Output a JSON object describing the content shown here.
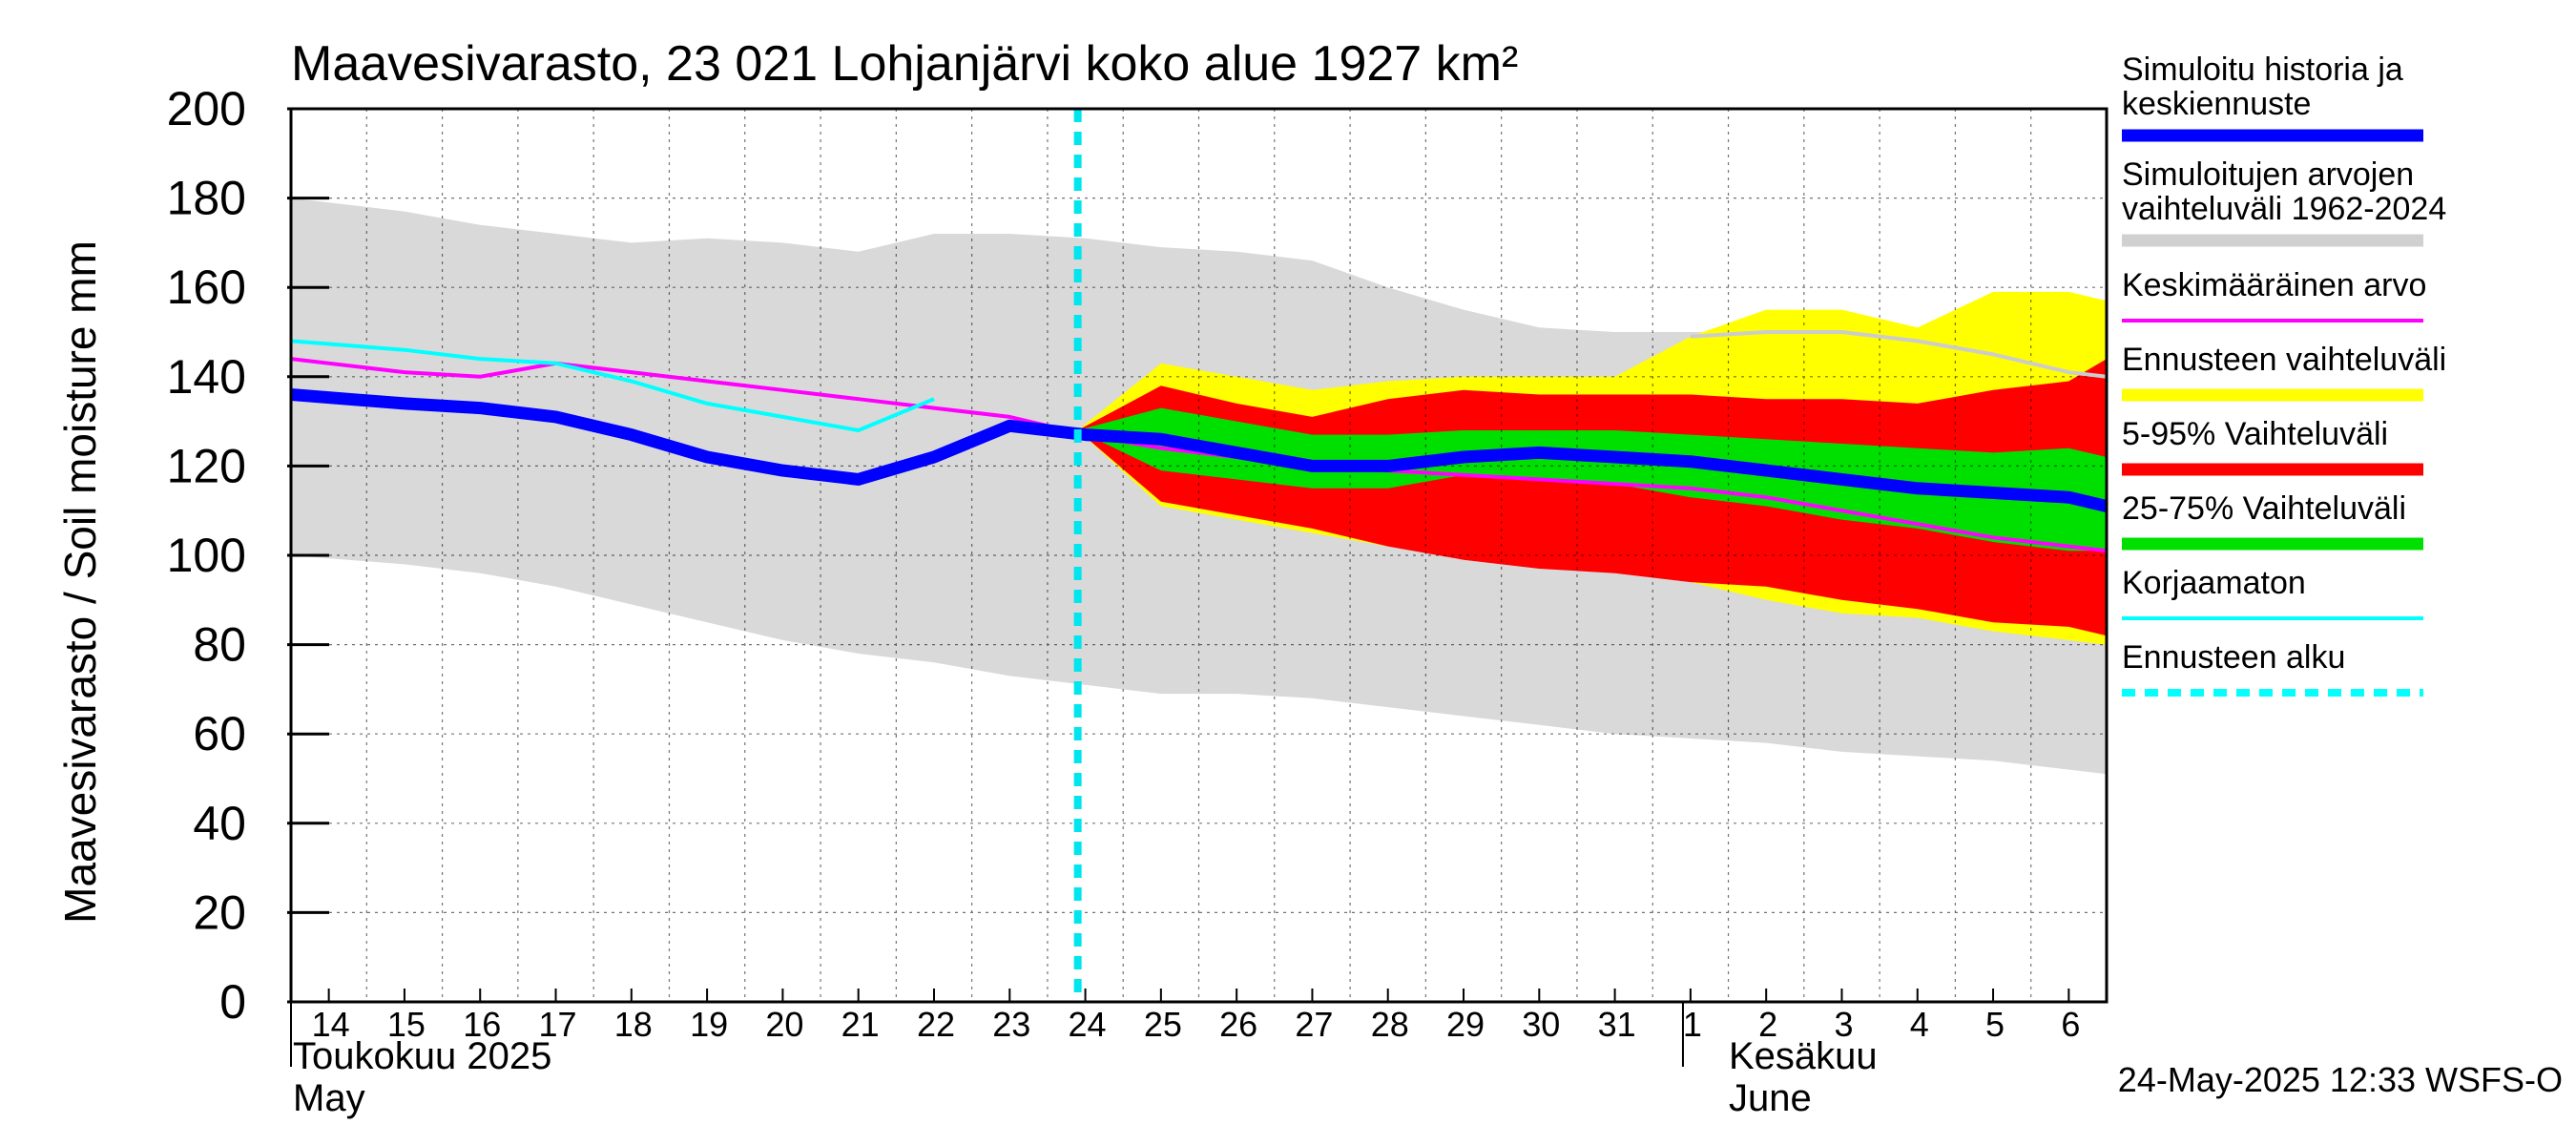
{
  "chart_data": {
    "type": "area",
    "title": "Maavesivarasto, 23 021 Lohjanjärvi koko alue 1927 km²",
    "ylabel": "Maavesivarasto / Soil moisture   mm",
    "ylim": [
      0,
      200
    ],
    "yticks": [
      0,
      20,
      40,
      60,
      80,
      100,
      120,
      140,
      160,
      180,
      200
    ],
    "x_day_range": [
      13.5,
      37.5
    ],
    "x_tick_labels": [
      "14",
      "15",
      "16",
      "17",
      "18",
      "19",
      "20",
      "21",
      "22",
      "23",
      "24",
      "25",
      "26",
      "27",
      "28",
      "29",
      "30",
      "31",
      "1",
      "2",
      "3",
      "4",
      "5",
      "6"
    ],
    "month_labels": {
      "may_fi": "Toukokuu  2025",
      "may_en": "May",
      "june_fi": "Kesäkuu",
      "june_en": "June"
    },
    "forecast_start_day": 23.9,
    "timestamp": "24-May-2025 12:33 WSFS-O",
    "series": [
      {
        "name": "Simuloitujen arvojen vaihteluväli 1962-2024",
        "role": "history_band",
        "color": "#d9d9d9",
        "x": [
          13.5,
          15,
          16,
          17,
          18,
          19,
          20,
          21,
          22,
          23,
          24,
          25,
          26,
          27,
          28,
          29,
          30,
          31,
          32,
          33,
          34,
          35,
          36,
          37,
          37.5
        ],
        "upper": [
          180,
          177,
          174,
          172,
          170,
          171,
          170,
          168,
          172,
          172,
          171,
          169,
          168,
          166,
          160,
          155,
          151,
          150,
          150,
          150,
          150,
          150,
          150,
          150,
          150
        ],
        "lower": [
          100,
          98,
          96,
          93,
          89,
          85,
          81,
          78,
          76,
          73,
          71,
          69,
          69,
          68,
          66,
          64,
          62,
          60,
          59,
          58,
          56,
          55,
          54,
          52,
          51
        ]
      },
      {
        "name": "Ennusteen vaihteluväli",
        "role": "forecast_band",
        "color": "#ffff00",
        "x": [
          23.9,
          25,
          26,
          27,
          28,
          29,
          30,
          31,
          32,
          33,
          34,
          35,
          36,
          37,
          37.5
        ],
        "upper": [
          128,
          143,
          140,
          137,
          139,
          140,
          140,
          140,
          149,
          155,
          155,
          151,
          159,
          159,
          157
        ],
        "lower": [
          128,
          111,
          108,
          105,
          102,
          100,
          98,
          99,
          94,
          90,
          87,
          86,
          83,
          81,
          80
        ]
      },
      {
        "name": "5-95% Vaihteluväli",
        "role": "band_5_95",
        "color": "#ff0000",
        "x": [
          23.9,
          25,
          26,
          27,
          28,
          29,
          30,
          31,
          32,
          33,
          34,
          35,
          36,
          37,
          37.5
        ],
        "upper": [
          128,
          138,
          134,
          131,
          135,
          137,
          136,
          136,
          136,
          135,
          135,
          134,
          137,
          139,
          144
        ],
        "lower": [
          128,
          112,
          109,
          106,
          102,
          99,
          97,
          96,
          94,
          93,
          90,
          88,
          85,
          84,
          82
        ]
      },
      {
        "name": "25-75% Vaihteluväli",
        "role": "band_25_75",
        "color": "#00e000",
        "x": [
          23.9,
          25,
          26,
          27,
          28,
          29,
          30,
          31,
          32,
          33,
          34,
          35,
          36,
          37,
          37.5
        ],
        "upper": [
          128,
          133,
          130,
          127,
          127,
          128,
          128,
          128,
          127,
          126,
          125,
          124,
          123,
          124,
          122
        ],
        "lower": [
          128,
          119,
          117,
          115,
          115,
          118,
          117,
          116,
          113,
          111,
          108,
          106,
          103,
          101,
          101
        ]
      },
      {
        "name": "Keskimääräinen arvo",
        "role": "mean",
        "color": "#ff00ff",
        "x": [
          13.5,
          15,
          16,
          17,
          18,
          19,
          20,
          21,
          22,
          23,
          24,
          25,
          26,
          27,
          28,
          29,
          30,
          31,
          32,
          33,
          34,
          35,
          36,
          37,
          37.5
        ],
        "values": [
          144,
          141,
          140,
          143,
          141,
          139,
          137,
          135,
          133,
          131,
          127,
          124,
          122,
          120,
          119,
          118,
          117,
          116,
          115,
          113,
          110,
          107,
          104,
          102,
          101
        ]
      },
      {
        "name": "Keskimääräinen arvo (ylempi jatke)",
        "role": "mean_upper_tail",
        "color": "#cccccc",
        "x": [
          32,
          33,
          34,
          35,
          36,
          37,
          37.5
        ],
        "values": [
          149,
          150,
          150,
          148,
          145,
          141,
          140
        ]
      },
      {
        "name": "Korjaamaton",
        "role": "uncorrected",
        "color": "#00ffff",
        "x": [
          13.5,
          15,
          16,
          17,
          18,
          19,
          20,
          21,
          22
        ],
        "values": [
          148,
          146,
          144,
          143,
          139,
          134,
          131,
          128,
          135
        ]
      },
      {
        "name": "Simuloitu historia ja keskiennuste",
        "role": "main",
        "color": "#0000ff",
        "x": [
          13.5,
          15,
          16,
          17,
          18,
          19,
          20,
          21,
          22,
          23,
          24,
          25,
          26,
          27,
          28,
          29,
          30,
          31,
          32,
          33,
          34,
          35,
          36,
          37,
          37.5
        ],
        "values": [
          136,
          134,
          133,
          131,
          127,
          122,
          119,
          117,
          122,
          129,
          127,
          126,
          123,
          120,
          120,
          122,
          123,
          122,
          121,
          119,
          117,
          115,
          114,
          113,
          111
        ]
      }
    ],
    "legend": [
      {
        "label": "Simuloitu historia ja keskiennuste",
        "color": "#0000ff",
        "style": "thick"
      },
      {
        "label": "Simuloitujen arvojen vaihteluväli 1962-2024",
        "color": "#d0d0d0",
        "style": "thick"
      },
      {
        "label": "Keskimääräinen arvo",
        "color": "#ff00ff",
        "style": "thin"
      },
      {
        "label": "Ennusteen vaihteluväli",
        "color": "#ffff00",
        "style": "thick"
      },
      {
        "label": "5-95% Vaihteluväli",
        "color": "#ff0000",
        "style": "thick"
      },
      {
        "label": "25-75% Vaihteluväli",
        "color": "#00e000",
        "style": "thick"
      },
      {
        "label": "Korjaamaton",
        "color": "#00ffff",
        "style": "thin"
      },
      {
        "label": "Ennusteen alku",
        "color": "#00ffff",
        "style": "dashed"
      }
    ]
  }
}
